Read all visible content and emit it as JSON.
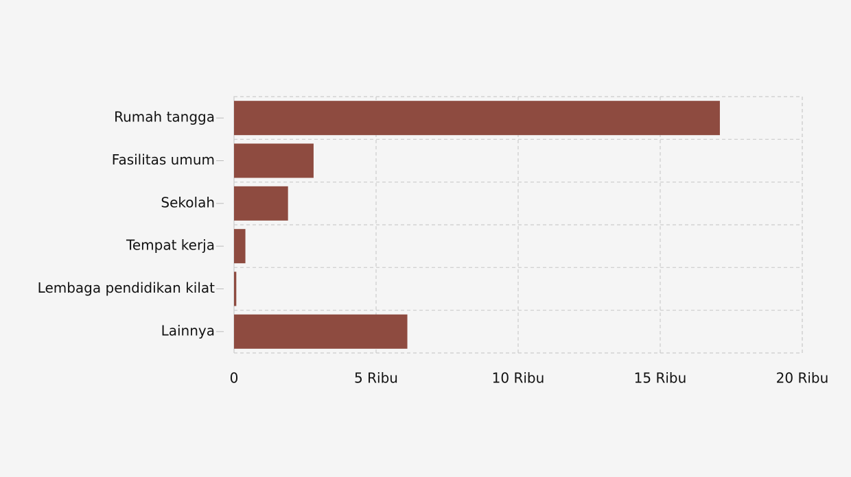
{
  "chart_data": {
    "type": "hbar",
    "categories": [
      "Rumah tangga",
      "Fasilitas umum",
      "Sekolah",
      "Tempat kerja",
      "Lembaga pendidikan kilat",
      "Lainnya"
    ],
    "values": [
      17100,
      2800,
      1900,
      400,
      80,
      6100
    ],
    "color": "#8e4b40",
    "xlim": [
      0,
      20000
    ],
    "xticks": [
      0,
      {
        "value": 5000,
        "label": "5 Ribu"
      },
      {
        "value": 10000,
        "label": "10 Ribu"
      },
      {
        "value": 15000,
        "label": "15 Ribu"
      },
      {
        "value": 20000,
        "label": "20 Ribu"
      }
    ],
    "grid": true
  }
}
